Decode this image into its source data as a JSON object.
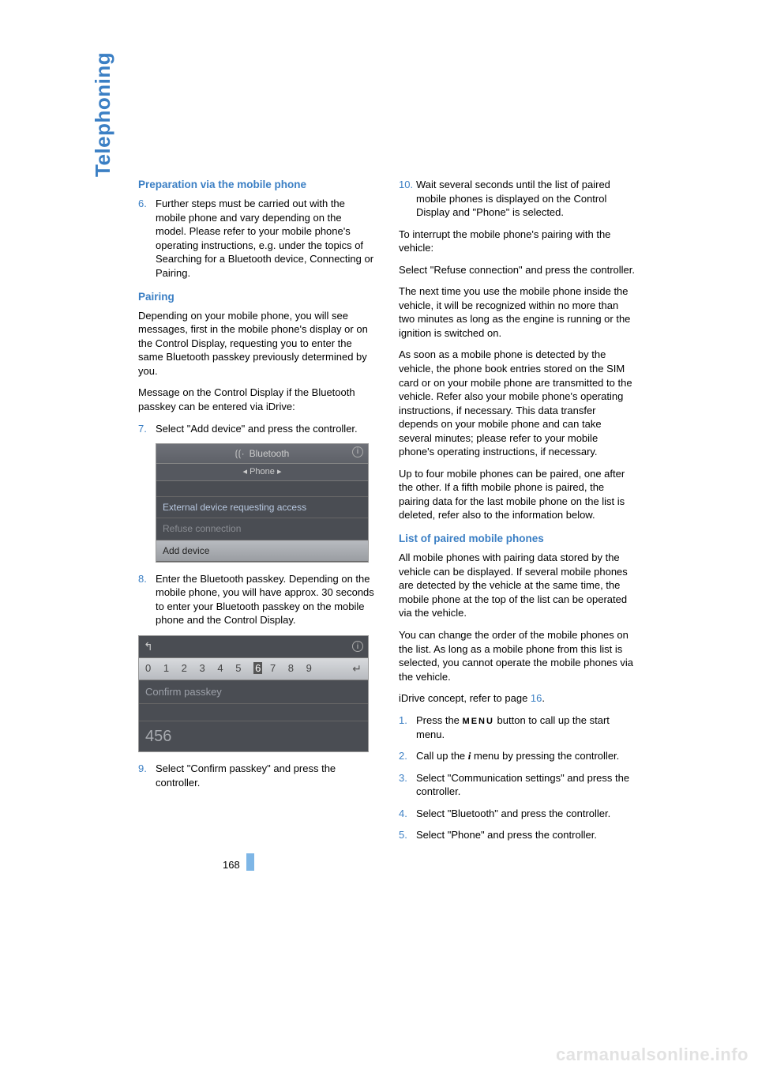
{
  "sideTab": "Telephoning",
  "pageNumber": "168",
  "watermark": "carmanualsonline.info",
  "left": {
    "h1": "Preparation via the mobile phone",
    "step6_num": "6.",
    "step6": "Further steps must be carried out with the mobile phone and vary depending on the model. Please refer to your mobile phone's operating instructions, e.g. under the topics of Searching for a Bluetooth device, Connecting or Pairing.",
    "h2": "Pairing",
    "p1": "Depending on your mobile phone, you will see messages, first in the mobile phone's display or on the Control Display, requesting you to enter the same Bluetooth passkey previously determined by you.",
    "p2": "Message on the Control Display if the Bluetooth passkey can be entered via iDrive:",
    "step7_num": "7.",
    "step7": "Select \"Add device\" and press the controller.",
    "scr1": {
      "header_icon": "⟮⟮·",
      "header": "Bluetooth",
      "subheader": "◂ Phone ▸",
      "line1": "External device requesting access",
      "line2": "Refuse connection",
      "line3": "Add device"
    },
    "step8_num": "8.",
    "step8": "Enter the Bluetooth passkey. Depending on the mobile phone, you will have approx. 30 seconds to enter your Bluetooth passkey on the mobile phone and the Control Display.",
    "scr2": {
      "numbers_before": "0 1 2 3 4 5",
      "numbers_sel": "6",
      "numbers_after": "7 8 9",
      "confirm": "Confirm passkey",
      "value": "456"
    },
    "step9_num": "9.",
    "step9": "Select \"Confirm passkey\" and press the controller."
  },
  "right": {
    "step10_num": "10.",
    "step10": "Wait several seconds until the list of paired mobile phones is displayed on the Control Display and \"Phone\" is selected.",
    "p1": "To interrupt the mobile phone's pairing with the vehicle:",
    "p2": "Select \"Refuse connection\" and press the controller.",
    "p3": "The next time you use the mobile phone inside the vehicle, it will be recognized within no more than two minutes as long as the engine is running or the ignition is switched on.",
    "p4": "As soon as a mobile phone is detected by the vehicle, the phone book entries stored on the SIM card or on your mobile phone are transmitted to the vehicle. Refer also your mobile phone's operating instructions, if necessary. This data transfer depends on your mobile phone and can take several minutes; please refer to your mobile phone's operating instructions, if necessary.",
    "p5": "Up to four mobile phones can be paired, one after the other. If a fifth mobile phone is paired, the pairing data for the last mobile phone on the list is deleted, refer also to the information below.",
    "h1": "List of paired mobile phones",
    "p6": "All mobile phones with pairing data stored by the vehicle can be displayed. If several mobile phones are detected by the vehicle at the same time, the mobile phone at the top of the list can be operated via the vehicle.",
    "p7": "You can change the order of the mobile phones on the list. As long as a mobile phone from this list is selected, you cannot operate the mobile phones via the vehicle.",
    "p8_a": "iDrive concept, refer to page ",
    "p8_link": "16",
    "p8_b": ".",
    "s1_num": "1.",
    "s1_a": "Press the ",
    "s1_menu": "MENU",
    "s1_b": " button to call up the start menu.",
    "s2_num": "2.",
    "s2_a": "Call up the ",
    "s2_icon": "i",
    "s2_b": " menu by pressing the controller.",
    "s3_num": "3.",
    "s3": "Select \"Communication settings\" and press the controller.",
    "s4_num": "4.",
    "s4": "Select \"Bluetooth\" and press the controller.",
    "s5_num": "5.",
    "s5": "Select \"Phone\" and press the controller."
  }
}
